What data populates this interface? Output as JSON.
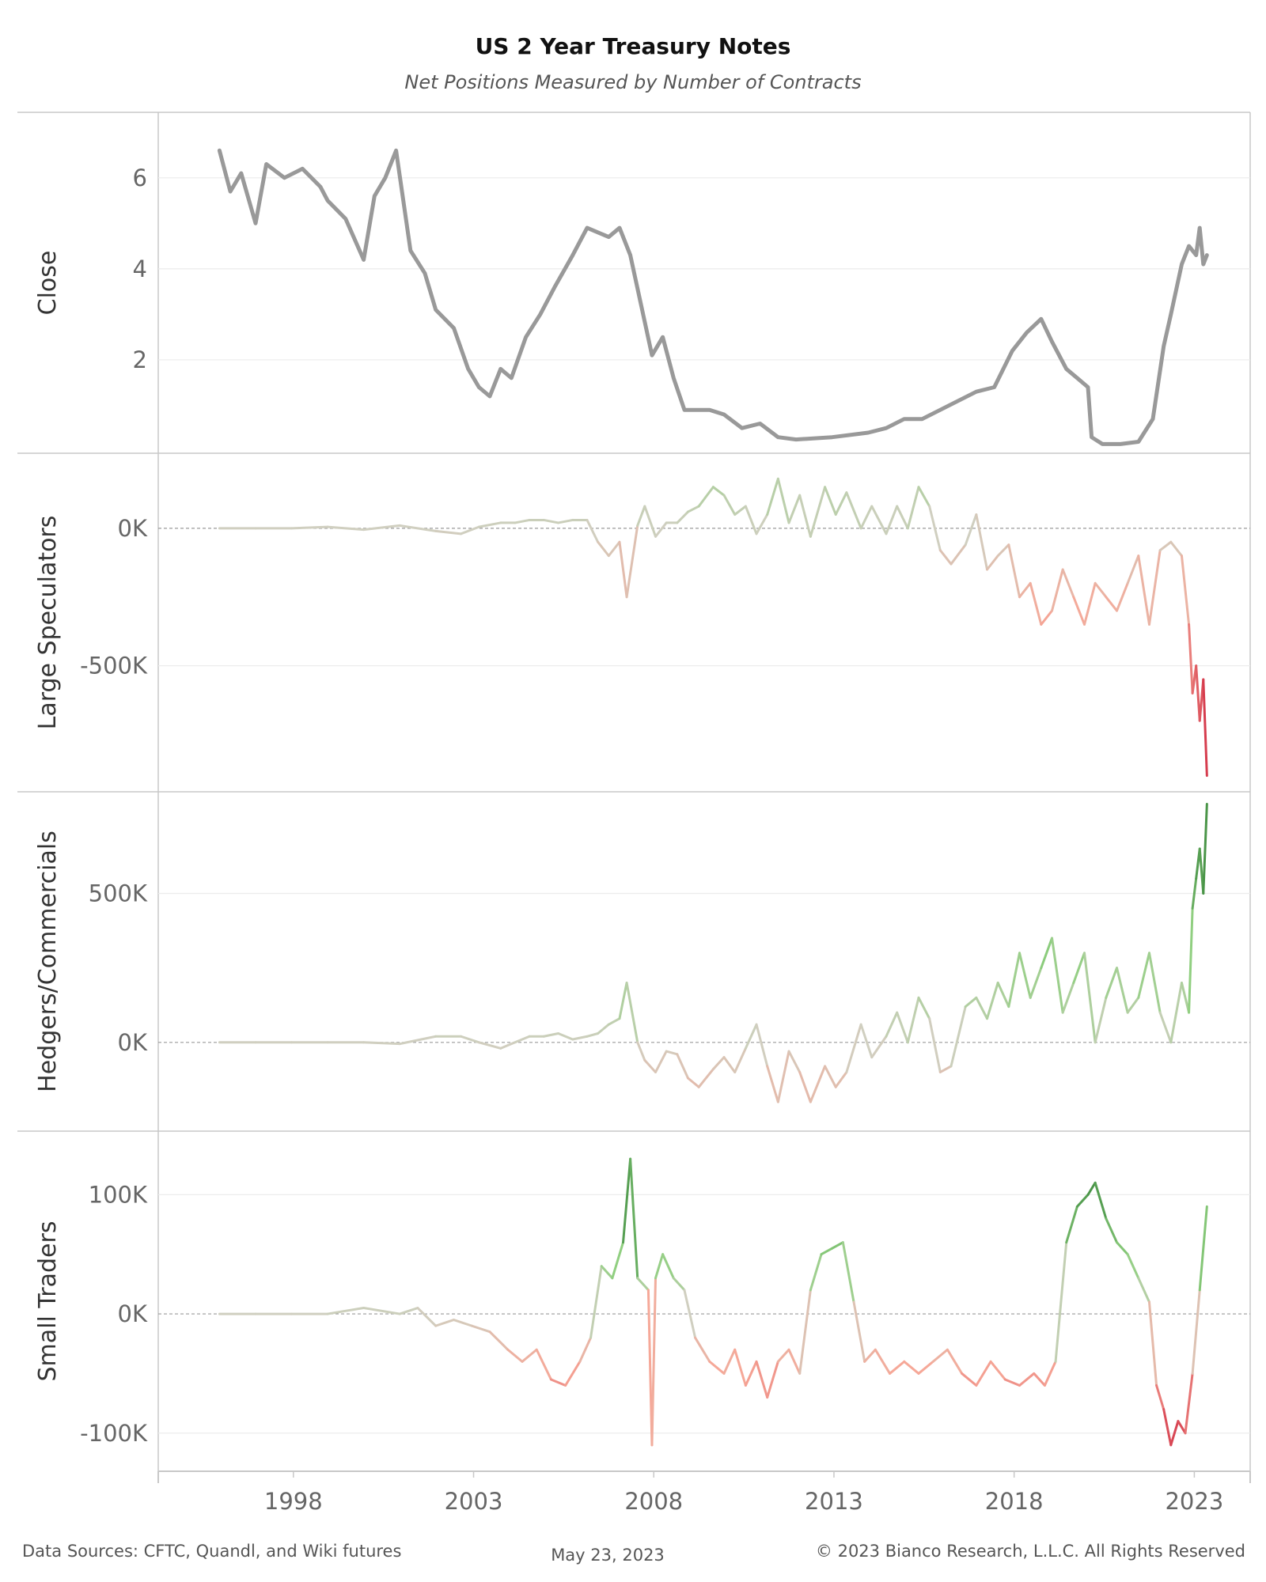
{
  "chart_title": "US 2 Year Treasury Notes",
  "chart_subtitle": "Net Positions Measured by Number of Contracts",
  "footer": {
    "sources": "Data Sources: CFTC, Quandl, and Wiki futures",
    "date": "May 23, 2023",
    "copyright": "© 2023 Bianco Research, L.L.C. All Rights Reserved"
  },
  "x_ticks": [
    "1998",
    "2003",
    "2008",
    "2013",
    "2018",
    "2023"
  ],
  "colors": {
    "close_line": "#999999",
    "positive_strong": "#2e7d32",
    "positive_light": "#8fcf7f",
    "neutral": "#d0cfc0",
    "negative_light": "#f6a898",
    "negative_strong": "#c8102e",
    "grid": "#ececec",
    "zero_line": "#9a9a9a",
    "pane_border": "#c8c8c8"
  },
  "chart_data": [
    {
      "type": "line",
      "pane": "close",
      "ylabel": "Close",
      "yticks": [
        6,
        4,
        2
      ],
      "ytick_labels": [
        "6",
        "4",
        "2"
      ],
      "ylim": [
        0,
        7.3
      ],
      "x": [
        1996.0,
        1996.3,
        1996.6,
        1997.0,
        1997.3,
        1997.8,
        1998.3,
        1998.8,
        1999.0,
        1999.5,
        2000.0,
        2000.3,
        2000.6,
        2000.9,
        2001.3,
        2001.7,
        2002.0,
        2002.5,
        2002.9,
        2003.2,
        2003.5,
        2003.8,
        2004.1,
        2004.5,
        2004.9,
        2005.3,
        2005.8,
        2006.2,
        2006.5,
        2006.8,
        2007.1,
        2007.4,
        2007.7,
        2008.0,
        2008.3,
        2008.6,
        2008.9,
        2009.2,
        2009.6,
        2010.0,
        2010.5,
        2011.0,
        2011.5,
        2012.0,
        2013.0,
        2014.0,
        2014.5,
        2015.0,
        2015.5,
        2016.0,
        2016.5,
        2017.0,
        2017.5,
        2018.0,
        2018.4,
        2018.8,
        2019.1,
        2019.5,
        2019.8,
        2020.1,
        2020.2,
        2020.5,
        2021.0,
        2021.5,
        2021.9,
        2022.2,
        2022.4,
        2022.7,
        2022.9,
        2023.1,
        2023.2,
        2023.3,
        2023.4
      ],
      "y": [
        6.6,
        5.7,
        6.1,
        5.0,
        6.3,
        6.0,
        6.2,
        5.8,
        5.5,
        5.1,
        4.2,
        5.6,
        6.0,
        6.6,
        4.4,
        3.9,
        3.1,
        2.7,
        1.8,
        1.4,
        1.2,
        1.8,
        1.6,
        2.5,
        3.0,
        3.6,
        4.3,
        4.9,
        4.8,
        4.7,
        4.9,
        4.3,
        3.2,
        2.1,
        2.5,
        1.6,
        0.9,
        0.9,
        0.9,
        0.8,
        0.5,
        0.6,
        0.3,
        0.25,
        0.3,
        0.4,
        0.5,
        0.7,
        0.7,
        0.9,
        1.1,
        1.3,
        1.4,
        2.2,
        2.6,
        2.9,
        2.4,
        1.8,
        1.6,
        1.4,
        0.3,
        0.15,
        0.15,
        0.2,
        0.7,
        2.3,
        3.0,
        4.1,
        4.5,
        4.3,
        4.9,
        4.1,
        4.3
      ]
    },
    {
      "type": "line",
      "pane": "large_speculators",
      "ylabel": "Large Speculators",
      "yticks": [
        0,
        -500000
      ],
      "ytick_labels": [
        "0K",
        "-500K"
      ],
      "ylim": [
        -950000,
        250000
      ],
      "x": [
        1996.0,
        1997.0,
        1998.0,
        1999.0,
        2000.0,
        2001.0,
        2002.0,
        2002.7,
        2003.2,
        2003.8,
        2004.2,
        2004.6,
        2005.0,
        2005.4,
        2005.8,
        2006.2,
        2006.5,
        2006.8,
        2007.1,
        2007.3,
        2007.6,
        2007.8,
        2008.1,
        2008.4,
        2008.7,
        2009.0,
        2009.3,
        2009.7,
        2010.0,
        2010.3,
        2010.6,
        2010.9,
        2011.2,
        2011.5,
        2011.8,
        2012.1,
        2012.4,
        2012.8,
        2013.1,
        2013.4,
        2013.8,
        2014.1,
        2014.5,
        2014.8,
        2015.1,
        2015.4,
        2015.7,
        2016.0,
        2016.3,
        2016.7,
        2017.0,
        2017.3,
        2017.6,
        2017.9,
        2018.2,
        2018.5,
        2018.8,
        2019.1,
        2019.4,
        2019.7,
        2020.0,
        2020.3,
        2020.6,
        2020.9,
        2021.2,
        2021.5,
        2021.8,
        2022.1,
        2022.4,
        2022.7,
        2022.9,
        2023.0,
        2023.1,
        2023.2,
        2023.3,
        2023.4
      ],
      "y": [
        0,
        0,
        0,
        5000,
        -5000,
        10000,
        -10000,
        -20000,
        5000,
        20000,
        20000,
        30000,
        30000,
        20000,
        30000,
        30000,
        -50000,
        -100000,
        -50000,
        -250000,
        10000,
        80000,
        -30000,
        20000,
        20000,
        60000,
        80000,
        150000,
        120000,
        50000,
        80000,
        -20000,
        50000,
        180000,
        20000,
        120000,
        -30000,
        150000,
        50000,
        130000,
        0,
        80000,
        -20000,
        80000,
        0,
        150000,
        80000,
        -80000,
        -130000,
        -60000,
        50000,
        -150000,
        -100000,
        -60000,
        -250000,
        -200000,
        -350000,
        -300000,
        -150000,
        -250000,
        -350000,
        -200000,
        -250000,
        -300000,
        -200000,
        -100000,
        -350000,
        -80000,
        -50000,
        -100000,
        -350000,
        -600000,
        -500000,
        -700000,
        -550000,
        -900000
      ]
    },
    {
      "type": "line",
      "pane": "hedgers_commercials",
      "ylabel": "Hedgers/Commercials",
      "yticks": [
        500000,
        0
      ],
      "ytick_labels": [
        "500K",
        "0K"
      ],
      "ylim": [
        -290000,
        820000
      ],
      "x": [
        1996.0,
        1997.0,
        1998.0,
        1999.0,
        2000.0,
        2001.0,
        2002.0,
        2002.7,
        2003.2,
        2003.8,
        2004.2,
        2004.6,
        2005.0,
        2005.4,
        2005.8,
        2006.2,
        2006.5,
        2006.8,
        2007.1,
        2007.3,
        2007.6,
        2007.8,
        2008.1,
        2008.4,
        2008.7,
        2009.0,
        2009.3,
        2009.7,
        2010.0,
        2010.3,
        2010.6,
        2010.9,
        2011.2,
        2011.5,
        2011.8,
        2012.1,
        2012.4,
        2012.8,
        2013.1,
        2013.4,
        2013.8,
        2014.1,
        2014.5,
        2014.8,
        2015.1,
        2015.4,
        2015.7,
        2016.0,
        2016.3,
        2016.7,
        2017.0,
        2017.3,
        2017.6,
        2017.9,
        2018.2,
        2018.5,
        2018.8,
        2019.1,
        2019.4,
        2019.7,
        2020.0,
        2020.3,
        2020.6,
        2020.9,
        2021.2,
        2021.5,
        2021.8,
        2022.1,
        2022.4,
        2022.7,
        2022.9,
        2023.0,
        2023.1,
        2023.2,
        2023.3,
        2023.4
      ],
      "y": [
        0,
        0,
        0,
        0,
        0,
        -5000,
        20000,
        20000,
        0,
        -20000,
        0,
        20000,
        20000,
        30000,
        10000,
        20000,
        30000,
        60000,
        80000,
        200000,
        0,
        -60000,
        -100000,
        -30000,
        -40000,
        -120000,
        -150000,
        -90000,
        -50000,
        -100000,
        -20000,
        60000,
        -80000,
        -200000,
        -30000,
        -100000,
        -200000,
        -80000,
        -150000,
        -100000,
        60000,
        -50000,
        20000,
        100000,
        0,
        150000,
        80000,
        -100000,
        -80000,
        120000,
        150000,
        80000,
        200000,
        120000,
        300000,
        150000,
        250000,
        350000,
        100000,
        200000,
        300000,
        0,
        150000,
        250000,
        100000,
        150000,
        300000,
        100000,
        0,
        200000,
        100000,
        450000,
        550000,
        650000,
        500000,
        800000
      ]
    },
    {
      "type": "line",
      "pane": "small_traders",
      "ylabel": "Small Traders",
      "yticks": [
        100000,
        0,
        -100000
      ],
      "ytick_labels": [
        "100K",
        "0K",
        "-100K"
      ],
      "ylim": [
        -130000,
        148000
      ],
      "x": [
        1996.0,
        1997.0,
        1998.0,
        1999.0,
        2000.0,
        2001.0,
        2001.5,
        2002.0,
        2002.5,
        2003.0,
        2003.5,
        2004.0,
        2004.4,
        2004.8,
        2005.2,
        2005.6,
        2006.0,
        2006.3,
        2006.6,
        2006.9,
        2007.2,
        2007.4,
        2007.6,
        2007.9,
        2008.0,
        2008.1,
        2008.3,
        2008.6,
        2008.9,
        2009.2,
        2009.6,
        2010.0,
        2010.3,
        2010.6,
        2010.9,
        2011.2,
        2011.5,
        2011.8,
        2012.1,
        2012.4,
        2012.7,
        2013.0,
        2013.3,
        2013.6,
        2013.9,
        2014.2,
        2014.6,
        2015.0,
        2015.4,
        2015.8,
        2016.2,
        2016.6,
        2017.0,
        2017.4,
        2017.8,
        2018.2,
        2018.6,
        2018.9,
        2019.2,
        2019.5,
        2019.8,
        2020.1,
        2020.3,
        2020.6,
        2020.9,
        2021.2,
        2021.5,
        2021.8,
        2022.0,
        2022.2,
        2022.4,
        2022.6,
        2022.8,
        2023.0,
        2023.2,
        2023.4
      ],
      "y": [
        0,
        0,
        0,
        0,
        5000,
        0,
        5000,
        -10000,
        -5000,
        -10000,
        -15000,
        -30000,
        -40000,
        -30000,
        -55000,
        -60000,
        -40000,
        -20000,
        40000,
        30000,
        60000,
        130000,
        30000,
        20000,
        -110000,
        30000,
        50000,
        30000,
        20000,
        -20000,
        -40000,
        -50000,
        -30000,
        -60000,
        -40000,
        -70000,
        -40000,
        -30000,
        -50000,
        20000,
        50000,
        55000,
        60000,
        10000,
        -40000,
        -30000,
        -50000,
        -40000,
        -50000,
        -40000,
        -30000,
        -50000,
        -60000,
        -40000,
        -55000,
        -60000,
        -50000,
        -60000,
        -40000,
        60000,
        90000,
        100000,
        110000,
        80000,
        60000,
        50000,
        30000,
        10000,
        -60000,
        -80000,
        -110000,
        -90000,
        -100000,
        -50000,
        20000,
        90000
      ]
    }
  ]
}
